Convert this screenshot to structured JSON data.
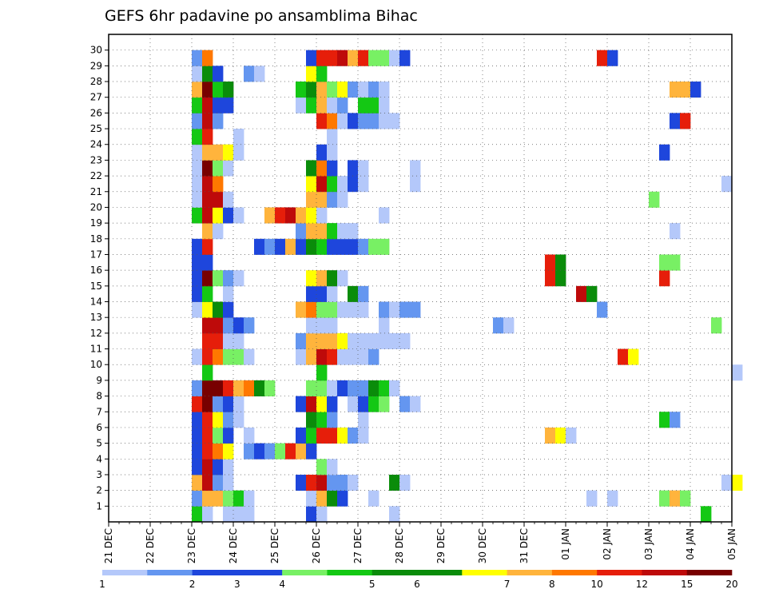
{
  "chart_data": {
    "type": "heatmap",
    "title": "GEFS 6hr padavine po ansamblima Bihac",
    "x_tick_labels": [
      "21 DEC",
      "22 DEC",
      "23 DEC",
      "24 DEC",
      "25 DEC",
      "26 DEC",
      "27 DEC",
      "28 DEC",
      "29 DEC",
      "30 DEC",
      "31 DEC",
      "01 JAN",
      "02 JAN",
      "03 JAN",
      "04 JAN",
      "05 JAN"
    ],
    "y_tick_labels": [
      1,
      2,
      3,
      4,
      5,
      6,
      7,
      8,
      9,
      10,
      11,
      12,
      13,
      14,
      15,
      16,
      17,
      18,
      19,
      20,
      21,
      22,
      23,
      24,
      25,
      26,
      27,
      28,
      29,
      30
    ],
    "x_range_days": [
      0,
      15
    ],
    "steps_per_day": 4,
    "grid": true,
    "colorbar": {
      "position": "bottom",
      "labels": [
        "1",
        "2",
        "3",
        "4",
        "5",
        "6",
        "7",
        "8",
        "10",
        "12",
        "15",
        "20"
      ],
      "colors": [
        "#b4c8fa",
        "#6496f0",
        "#1e46dc",
        "#1e46dc",
        "#78f064",
        "#14c814",
        "#0a8c0a",
        "#0a8c0a",
        "#ffff00",
        "#ffb43c",
        "#ff7800",
        "#e61e0a",
        "#be0a0a",
        "#780000"
      ]
    },
    "color_key": {
      "a": "#b4c8fa",
      "b": "#6496f0",
      "c": "#1e46dc",
      "d": "#78f064",
      "e": "#14c814",
      "f": "#0a8c0a",
      "g": "#ffff00",
      "h": "#ffb43c",
      "i": "#ff7800",
      "j": "#e61e0a",
      "k": "#be0a0a",
      "l": "#780000"
    },
    "rows": {
      "0": [
        [
          8,
          "e"
        ],
        [
          9,
          "a"
        ],
        [
          11,
          "a"
        ],
        [
          12,
          "a"
        ],
        [
          13,
          "a"
        ],
        [
          19,
          "c"
        ],
        [
          20,
          "a"
        ],
        [
          27,
          "a"
        ],
        [
          57,
          "e"
        ]
      ],
      "1": [
        [
          8,
          "b"
        ],
        [
          9,
          "h"
        ],
        [
          10,
          "h"
        ],
        [
          11,
          "d"
        ],
        [
          12,
          "e"
        ],
        [
          13,
          "a"
        ],
        [
          19,
          "a"
        ],
        [
          20,
          "h"
        ],
        [
          21,
          "f"
        ],
        [
          22,
          "c"
        ],
        [
          25,
          "a"
        ],
        [
          46,
          "a"
        ],
        [
          48,
          "a"
        ],
        [
          53,
          "d"
        ],
        [
          54,
          "h"
        ],
        [
          55,
          "d"
        ]
      ],
      "2": [
        [
          8,
          "h"
        ],
        [
          9,
          "k"
        ],
        [
          10,
          "b"
        ],
        [
          11,
          "a"
        ],
        [
          18,
          "c"
        ],
        [
          19,
          "j"
        ],
        [
          20,
          "k"
        ],
        [
          21,
          "b"
        ],
        [
          22,
          "b"
        ],
        [
          23,
          "a"
        ],
        [
          27,
          "f"
        ],
        [
          28,
          "a"
        ],
        [
          59,
          "a"
        ],
        [
          60,
          "g"
        ]
      ],
      "3": [
        [
          8,
          "c"
        ],
        [
          9,
          "k"
        ],
        [
          10,
          "c"
        ],
        [
          11,
          "a"
        ],
        [
          20,
          "d"
        ],
        [
          21,
          "a"
        ]
      ],
      "4": [
        [
          8,
          "c"
        ],
        [
          9,
          "j"
        ],
        [
          10,
          "i"
        ],
        [
          11,
          "g"
        ],
        [
          13,
          "b"
        ],
        [
          14,
          "c"
        ],
        [
          15,
          "b"
        ],
        [
          16,
          "d"
        ],
        [
          17,
          "j"
        ],
        [
          18,
          "h"
        ],
        [
          19,
          "c"
        ]
      ],
      "5": [
        [
          8,
          "c"
        ],
        [
          9,
          "j"
        ],
        [
          10,
          "d"
        ],
        [
          11,
          "c"
        ],
        [
          13,
          "a"
        ],
        [
          18,
          "c"
        ],
        [
          19,
          "e"
        ],
        [
          20,
          "j"
        ],
        [
          21,
          "j"
        ],
        [
          22,
          "g"
        ],
        [
          23,
          "b"
        ],
        [
          24,
          "a"
        ],
        [
          42,
          "h"
        ],
        [
          43,
          "g"
        ],
        [
          44,
          "a"
        ]
      ],
      "6": [
        [
          8,
          "c"
        ],
        [
          9,
          "j"
        ],
        [
          10,
          "g"
        ],
        [
          11,
          "b"
        ],
        [
          12,
          "a"
        ],
        [
          19,
          "f"
        ],
        [
          20,
          "e"
        ],
        [
          21,
          "b"
        ],
        [
          24,
          "a"
        ],
        [
          53,
          "e"
        ],
        [
          54,
          "b"
        ]
      ],
      "7": [
        [
          8,
          "j"
        ],
        [
          9,
          "l"
        ],
        [
          10,
          "b"
        ],
        [
          11,
          "c"
        ],
        [
          12,
          "a"
        ],
        [
          18,
          "c"
        ],
        [
          19,
          "k"
        ],
        [
          20,
          "g"
        ],
        [
          21,
          "c"
        ],
        [
          23,
          "a"
        ],
        [
          24,
          "c"
        ],
        [
          25,
          "e"
        ],
        [
          26,
          "d"
        ],
        [
          28,
          "b"
        ],
        [
          29,
          "a"
        ]
      ],
      "8": [
        [
          8,
          "b"
        ],
        [
          9,
          "l"
        ],
        [
          10,
          "l"
        ],
        [
          11,
          "j"
        ],
        [
          12,
          "h"
        ],
        [
          13,
          "i"
        ],
        [
          14,
          "f"
        ],
        [
          15,
          "d"
        ],
        [
          19,
          "d"
        ],
        [
          20,
          "d"
        ],
        [
          21,
          "a"
        ],
        [
          22,
          "c"
        ],
        [
          23,
          "b"
        ],
        [
          24,
          "b"
        ],
        [
          25,
          "f"
        ],
        [
          26,
          "e"
        ],
        [
          27,
          "a"
        ]
      ],
      "9": [
        [
          9,
          "e"
        ],
        [
          20,
          "e"
        ],
        [
          60,
          "a"
        ]
      ],
      "10": [
        [
          8,
          "a"
        ],
        [
          9,
          "j"
        ],
        [
          10,
          "i"
        ],
        [
          11,
          "d"
        ],
        [
          12,
          "d"
        ],
        [
          13,
          "a"
        ],
        [
          18,
          "a"
        ],
        [
          19,
          "h"
        ],
        [
          20,
          "k"
        ],
        [
          21,
          "j"
        ],
        [
          22,
          "a"
        ],
        [
          23,
          "a"
        ],
        [
          24,
          "a"
        ],
        [
          25,
          "b"
        ],
        [
          49,
          "j"
        ],
        [
          50,
          "g"
        ]
      ],
      "11": [
        [
          9,
          "j"
        ],
        [
          10,
          "j"
        ],
        [
          11,
          "a"
        ],
        [
          12,
          "a"
        ],
        [
          18,
          "b"
        ],
        [
          19,
          "h"
        ],
        [
          20,
          "h"
        ],
        [
          21,
          "h"
        ],
        [
          22,
          "g"
        ],
        [
          23,
          "a"
        ],
        [
          24,
          "a"
        ],
        [
          25,
          "a"
        ],
        [
          26,
          "a"
        ],
        [
          27,
          "a"
        ],
        [
          28,
          "a"
        ]
      ],
      "12": [
        [
          9,
          "k"
        ],
        [
          10,
          "k"
        ],
        [
          11,
          "b"
        ],
        [
          12,
          "c"
        ],
        [
          13,
          "b"
        ],
        [
          19,
          "a"
        ],
        [
          20,
          "a"
        ],
        [
          21,
          "a"
        ],
        [
          26,
          "a"
        ],
        [
          37,
          "b"
        ],
        [
          38,
          "a"
        ],
        [
          58,
          "d"
        ]
      ],
      "13": [
        [
          8,
          "a"
        ],
        [
          9,
          "g"
        ],
        [
          10,
          "f"
        ],
        [
          11,
          "c"
        ],
        [
          18,
          "h"
        ],
        [
          19,
          "i"
        ],
        [
          20,
          "d"
        ],
        [
          21,
          "d"
        ],
        [
          22,
          "a"
        ],
        [
          23,
          "a"
        ],
        [
          24,
          "a"
        ],
        [
          26,
          "b"
        ],
        [
          27,
          "a"
        ],
        [
          28,
          "b"
        ],
        [
          29,
          "b"
        ],
        [
          47,
          "b"
        ]
      ],
      "14": [
        [
          8,
          "c"
        ],
        [
          9,
          "e"
        ],
        [
          11,
          "a"
        ],
        [
          19,
          "c"
        ],
        [
          20,
          "c"
        ],
        [
          21,
          "a"
        ],
        [
          23,
          "f"
        ],
        [
          24,
          "b"
        ],
        [
          45,
          "k"
        ],
        [
          46,
          "f"
        ]
      ],
      "15": [
        [
          8,
          "c"
        ],
        [
          9,
          "l"
        ],
        [
          10,
          "d"
        ],
        [
          11,
          "b"
        ],
        [
          12,
          "a"
        ],
        [
          19,
          "g"
        ],
        [
          20,
          "h"
        ],
        [
          21,
          "f"
        ],
        [
          22,
          "a"
        ],
        [
          42,
          "j"
        ],
        [
          43,
          "f"
        ],
        [
          53,
          "j"
        ]
      ],
      "16": [
        [
          8,
          "c"
        ],
        [
          9,
          "c"
        ],
        [
          42,
          "j"
        ],
        [
          43,
          "f"
        ],
        [
          53,
          "d"
        ],
        [
          54,
          "d"
        ]
      ],
      "17": [
        [
          8,
          "c"
        ],
        [
          9,
          "j"
        ],
        [
          14,
          "c"
        ],
        [
          15,
          "b"
        ],
        [
          16,
          "c"
        ],
        [
          17,
          "h"
        ],
        [
          18,
          "c"
        ],
        [
          19,
          "f"
        ],
        [
          20,
          "e"
        ],
        [
          21,
          "c"
        ],
        [
          22,
          "c"
        ],
        [
          23,
          "c"
        ],
        [
          24,
          "b"
        ],
        [
          25,
          "d"
        ],
        [
          26,
          "d"
        ]
      ],
      "18": [
        [
          9,
          "h"
        ],
        [
          10,
          "a"
        ],
        [
          18,
          "b"
        ],
        [
          19,
          "h"
        ],
        [
          20,
          "h"
        ],
        [
          21,
          "e"
        ],
        [
          22,
          "a"
        ],
        [
          23,
          "a"
        ],
        [
          54,
          "a"
        ]
      ],
      "19": [
        [
          8,
          "e"
        ],
        [
          9,
          "k"
        ],
        [
          10,
          "g"
        ],
        [
          11,
          "c"
        ],
        [
          12,
          "a"
        ],
        [
          15,
          "h"
        ],
        [
          16,
          "j"
        ],
        [
          17,
          "k"
        ],
        [
          18,
          "h"
        ],
        [
          19,
          "g"
        ],
        [
          20,
          "a"
        ],
        [
          26,
          "a"
        ]
      ],
      "20": [
        [
          8,
          "a"
        ],
        [
          9,
          "k"
        ],
        [
          10,
          "k"
        ],
        [
          11,
          "a"
        ],
        [
          19,
          "h"
        ],
        [
          20,
          "h"
        ],
        [
          21,
          "b"
        ],
        [
          22,
          "a"
        ],
        [
          52,
          "d"
        ]
      ],
      "21": [
        [
          8,
          "a"
        ],
        [
          9,
          "k"
        ],
        [
          10,
          "i"
        ],
        [
          19,
          "g"
        ],
        [
          20,
          "k"
        ],
        [
          21,
          "e"
        ],
        [
          22,
          "a"
        ],
        [
          23,
          "c"
        ],
        [
          24,
          "a"
        ],
        [
          29,
          "a"
        ],
        [
          59,
          "a"
        ]
      ],
      "22": [
        [
          8,
          "a"
        ],
        [
          9,
          "l"
        ],
        [
          10,
          "d"
        ],
        [
          11,
          "a"
        ],
        [
          19,
          "f"
        ],
        [
          20,
          "i"
        ],
        [
          21,
          "c"
        ],
        [
          23,
          "c"
        ],
        [
          24,
          "a"
        ],
        [
          29,
          "a"
        ]
      ],
      "23": [
        [
          8,
          "a"
        ],
        [
          9,
          "h"
        ],
        [
          10,
          "h"
        ],
        [
          11,
          "g"
        ],
        [
          12,
          "a"
        ],
        [
          20,
          "c"
        ],
        [
          21,
          "a"
        ],
        [
          53,
          "c"
        ]
      ],
      "24": [
        [
          8,
          "e"
        ],
        [
          9,
          "j"
        ],
        [
          12,
          "a"
        ],
        [
          21,
          "a"
        ]
      ],
      "25": [
        [
          8,
          "b"
        ],
        [
          9,
          "k"
        ],
        [
          10,
          "b"
        ],
        [
          20,
          "j"
        ],
        [
          21,
          "i"
        ],
        [
          22,
          "a"
        ],
        [
          23,
          "c"
        ],
        [
          24,
          "b"
        ],
        [
          25,
          "b"
        ],
        [
          26,
          "a"
        ],
        [
          27,
          "a"
        ],
        [
          54,
          "c"
        ],
        [
          55,
          "j"
        ]
      ],
      "26": [
        [
          8,
          "e"
        ],
        [
          9,
          "k"
        ],
        [
          10,
          "c"
        ],
        [
          11,
          "c"
        ],
        [
          18,
          "a"
        ],
        [
          19,
          "e"
        ],
        [
          20,
          "h"
        ],
        [
          21,
          "a"
        ],
        [
          22,
          "b"
        ],
        [
          24,
          "e"
        ],
        [
          25,
          "e"
        ],
        [
          26,
          "a"
        ]
      ],
      "27": [
        [
          8,
          "h"
        ],
        [
          9,
          "l"
        ],
        [
          10,
          "e"
        ],
        [
          11,
          "f"
        ],
        [
          18,
          "e"
        ],
        [
          19,
          "f"
        ],
        [
          20,
          "h"
        ],
        [
          21,
          "d"
        ],
        [
          22,
          "g"
        ],
        [
          23,
          "b"
        ],
        [
          24,
          "a"
        ],
        [
          25,
          "b"
        ],
        [
          26,
          "a"
        ],
        [
          54,
          "h"
        ],
        [
          55,
          "h"
        ],
        [
          56,
          "c"
        ]
      ],
      "28": [
        [
          8,
          "a"
        ],
        [
          9,
          "f"
        ],
        [
          10,
          "c"
        ],
        [
          13,
          "b"
        ],
        [
          14,
          "a"
        ],
        [
          19,
          "g"
        ],
        [
          20,
          "e"
        ]
      ],
      "29": [
        [
          8,
          "b"
        ],
        [
          9,
          "i"
        ],
        [
          19,
          "c"
        ],
        [
          20,
          "j"
        ],
        [
          21,
          "j"
        ],
        [
          22,
          "k"
        ],
        [
          23,
          "h"
        ],
        [
          24,
          "j"
        ],
        [
          25,
          "d"
        ],
        [
          26,
          "d"
        ],
        [
          27,
          "a"
        ],
        [
          28,
          "c"
        ],
        [
          47,
          "j"
        ],
        [
          48,
          "c"
        ]
      ]
    }
  }
}
